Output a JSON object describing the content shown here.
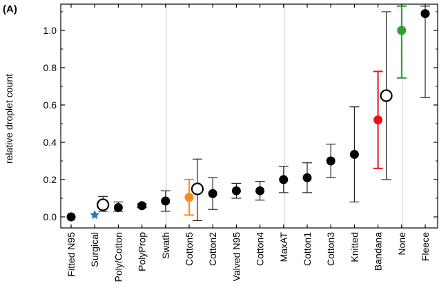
{
  "chart_data": {
    "type": "scatter",
    "panel_label": "(A)",
    "ylabel": "relative droplet count",
    "xlabel": "",
    "ylim": [
      -0.03,
      1.13
    ],
    "yticks": [
      "0.0",
      "0.2",
      "0.4",
      "0.6",
      "0.8",
      "1.0"
    ],
    "grid": "vertical",
    "categories": [
      "Fitted N95",
      "Surgical",
      "Poly/Cotton",
      "PolyProp",
      "Swath",
      "Cotton5",
      "Cotton2",
      "Valved N95",
      "Cotton4",
      "MaxAT",
      "Cotton1",
      "Cotton3",
      "Knitted",
      "Bandana",
      "None",
      "Fleece"
    ],
    "points": [
      {
        "category": "Fitted N95",
        "value": 0.0,
        "low": null,
        "high": null,
        "color": "#000000"
      },
      {
        "category": "Surgical",
        "value": 0.01,
        "low": null,
        "high": null,
        "color": "#1f77c4",
        "marker": "star"
      },
      {
        "category": "Poly/Cotton",
        "value": 0.05,
        "low": 0.03,
        "high": 0.08,
        "color": "#000000"
      },
      {
        "category": "PolyProp",
        "value": 0.06,
        "low": 0.05,
        "high": 0.07,
        "color": "#000000"
      },
      {
        "category": "Swath",
        "value": 0.085,
        "low": 0.03,
        "high": 0.14,
        "color": "#000000"
      },
      {
        "category": "Cotton5",
        "value": 0.105,
        "low": 0.01,
        "high": 0.2,
        "color": "#ff8c1a"
      },
      {
        "category": "Cotton2",
        "value": 0.125,
        "low": 0.04,
        "high": 0.21,
        "color": "#000000"
      },
      {
        "category": "Valved N95",
        "value": 0.14,
        "low": 0.1,
        "high": 0.18,
        "color": "#000000"
      },
      {
        "category": "Cotton4",
        "value": 0.14,
        "low": 0.09,
        "high": 0.19,
        "color": "#000000"
      },
      {
        "category": "MaxAT",
        "value": 0.2,
        "low": 0.13,
        "high": 0.27,
        "color": "#000000"
      },
      {
        "category": "Cotton1",
        "value": 0.21,
        "low": 0.13,
        "high": 0.29,
        "color": "#000000"
      },
      {
        "category": "Cotton3",
        "value": 0.3,
        "low": 0.21,
        "high": 0.39,
        "color": "#000000"
      },
      {
        "category": "Knitted",
        "value": 0.335,
        "low": 0.08,
        "high": 0.59,
        "color": "#000000"
      },
      {
        "category": "Bandana",
        "value": 0.52,
        "low": 0.26,
        "high": 0.78,
        "color": "#e8101c"
      },
      {
        "category": "None",
        "value": 1.0,
        "low": 0.745,
        "high": 1.13,
        "color": "#2ca02c"
      },
      {
        "category": "Fleece",
        "value": 1.09,
        "low": 0.64,
        "high": 1.13,
        "color": "#000000"
      }
    ],
    "open_markers": [
      {
        "x_between": [
          "Surgical",
          "Poly/Cotton"
        ],
        "x_offset": 0.25,
        "value": 0.065,
        "low": 0.03,
        "high": 0.11
      },
      {
        "x_between": [
          "Cotton5",
          "Cotton2"
        ],
        "x_offset": 0.25,
        "value": 0.15,
        "low": -0.02,
        "high": 0.31
      },
      {
        "x_between": [
          "Bandana",
          "None"
        ],
        "x_offset": 0.25,
        "value": 0.65,
        "low": 0.2,
        "high": 1.1
      }
    ]
  }
}
